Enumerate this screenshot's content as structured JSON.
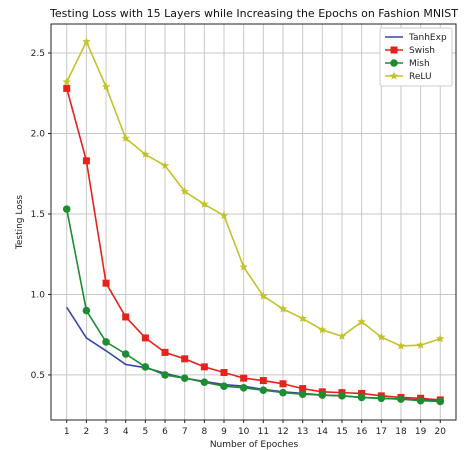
{
  "chart_data": {
    "type": "line",
    "title": "Testing Loss with 15 Layers while Increasing the Epochs on Fashion MNIST",
    "xlabel": "Number of Epoches",
    "ylabel": "Testing Loss",
    "x": [
      1,
      2,
      3,
      4,
      5,
      6,
      7,
      8,
      9,
      10,
      11,
      12,
      13,
      14,
      15,
      16,
      17,
      18,
      19,
      20
    ],
    "xlim": [
      0.2,
      20.8
    ],
    "ylim": [
      0.22,
      2.68
    ],
    "yticks": [
      0.5,
      1.0,
      1.5,
      2.0,
      2.5
    ],
    "ytick_labels": [
      "0.5",
      "1.0",
      "1.5",
      "2.0",
      "2.5"
    ],
    "grid": true,
    "legend_position": "top-right",
    "series": [
      {
        "name": "TanhExp",
        "color": "#3b45a8",
        "marker": "none",
        "values": [
          0.92,
          0.73,
          0.65,
          0.565,
          0.545,
          0.51,
          0.48,
          0.46,
          0.44,
          0.43,
          0.41,
          0.395,
          0.385,
          0.375,
          0.37,
          0.36,
          0.355,
          0.35,
          0.345,
          0.34
        ]
      },
      {
        "name": "Swish",
        "color": "#e8211c",
        "marker": "square",
        "values": [
          2.28,
          1.83,
          1.07,
          0.86,
          0.73,
          0.64,
          0.6,
          0.55,
          0.515,
          0.48,
          0.465,
          0.445,
          0.415,
          0.395,
          0.39,
          0.385,
          0.37,
          0.36,
          0.355,
          0.345
        ]
      },
      {
        "name": "Mish",
        "color": "#1e8c30",
        "marker": "circle",
        "values": [
          1.53,
          0.9,
          0.705,
          0.63,
          0.55,
          0.5,
          0.48,
          0.455,
          0.43,
          0.42,
          0.405,
          0.39,
          0.38,
          0.375,
          0.37,
          0.36,
          0.355,
          0.35,
          0.34,
          0.335
        ]
      },
      {
        "name": "ReLU",
        "color": "#c2c22a",
        "marker": "star",
        "values": [
          2.32,
          2.57,
          2.29,
          1.97,
          1.87,
          1.8,
          1.64,
          1.56,
          1.49,
          1.17,
          0.99,
          0.91,
          0.85,
          0.78,
          0.74,
          0.83,
          0.735,
          0.68,
          0.685,
          0.725
        ]
      }
    ]
  }
}
